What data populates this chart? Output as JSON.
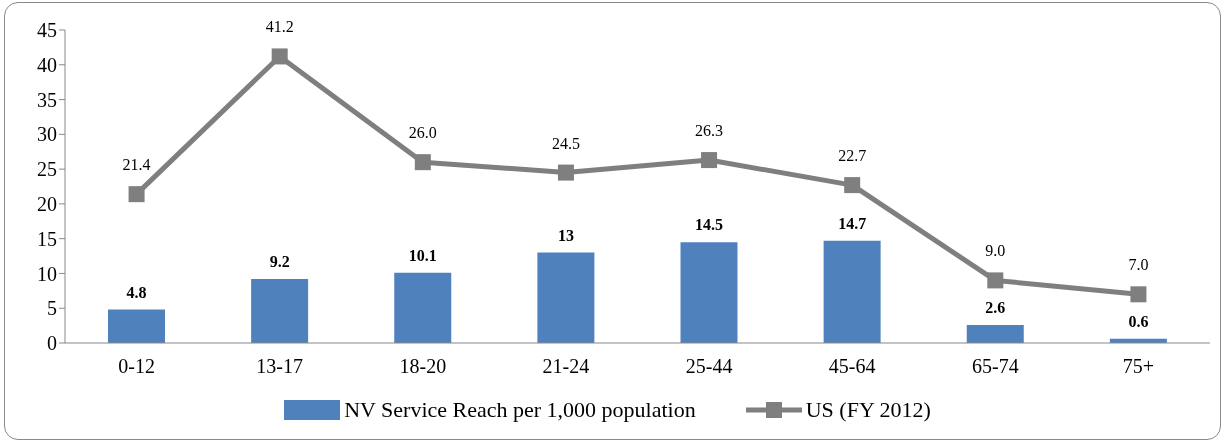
{
  "chart_data": {
    "type": "bar",
    "categories": [
      "0-12",
      "13-17",
      "18-20",
      "21-24",
      "25-44",
      "45-64",
      "65-74",
      "75+"
    ],
    "series": [
      {
        "name": "NV Service Reach per 1,000 population",
        "color": "#4f81bd",
        "values": [
          4.8,
          9.2,
          10.1,
          13,
          14.5,
          14.7,
          2.6,
          0.6
        ],
        "value_labels": [
          "4.8",
          "9.2",
          "10.1",
          "13",
          "14.5",
          "14.7",
          "2.6",
          "0.6"
        ]
      },
      {
        "name": "US (FY 2012)",
        "type": "line",
        "color": "#7f7f7f",
        "marker": "square",
        "values": [
          21.4,
          41.2,
          26.0,
          24.5,
          26.3,
          22.7,
          9.0,
          7.0
        ],
        "value_labels": [
          "21.4",
          "41.2",
          "26.0",
          "24.5",
          "26.3",
          "22.7",
          "9.0",
          "7.0"
        ]
      }
    ],
    "ylim": [
      0,
      45
    ],
    "yticks": [
      0,
      5,
      10,
      15,
      20,
      25,
      30,
      35,
      40,
      45
    ],
    "legend": "bottom"
  }
}
